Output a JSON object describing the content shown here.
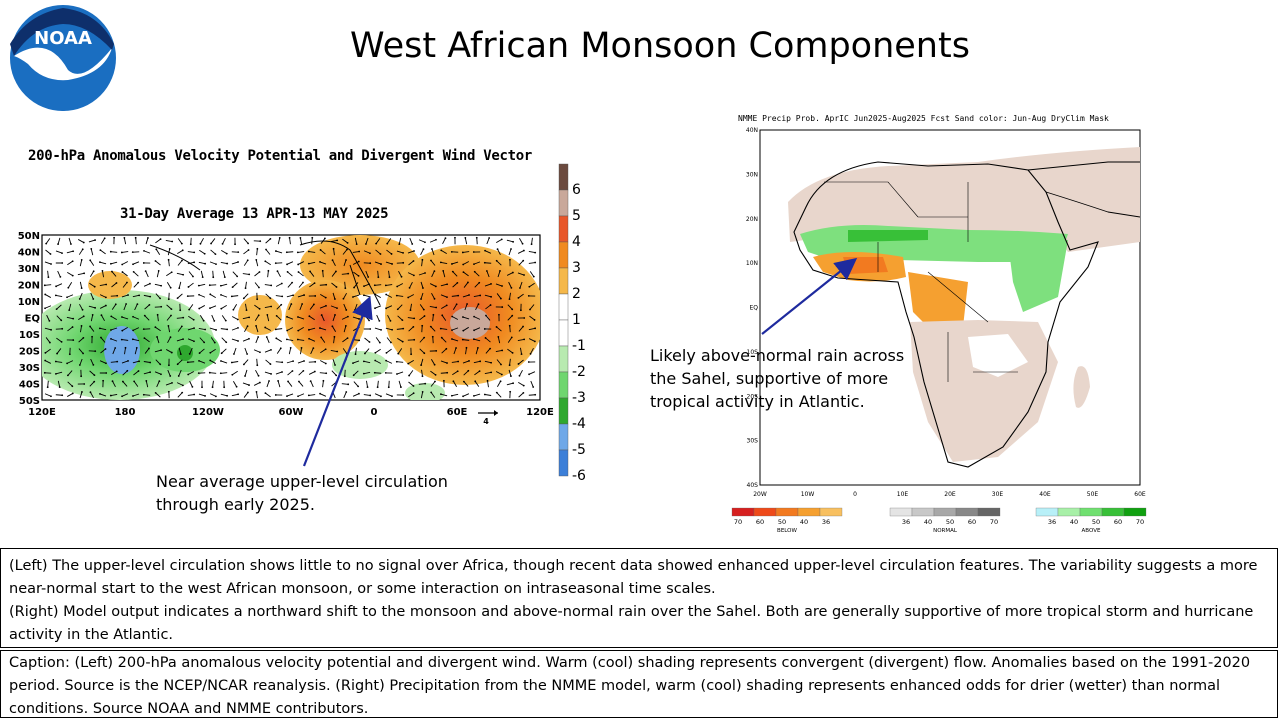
{
  "slide": {
    "title": "West African Monsoon Components",
    "logo_text": "NOAA"
  },
  "colors": {
    "noaa_blue": "#1a6ec1",
    "noaa_navy": "#0e2f6b",
    "arrow": "#1e2a9e",
    "land_dry": "#e8d6cc",
    "wet_green": "#7ee07e",
    "dry_orange": "#f0a030"
  },
  "chart_data": [
    {
      "type": "heatmap",
      "title": "200-hPa Anomalous Velocity Potential and Divergent Wind Vector",
      "subtitle": "31-Day Average 13 APR-13 MAY 2025",
      "x_tick_labels": [
        "120E",
        "180",
        "120W",
        "60W",
        "0",
        "60E",
        "120E"
      ],
      "y_tick_labels": [
        "50N",
        "40N",
        "30N",
        "20N",
        "10N",
        "EQ",
        "10S",
        "20S",
        "30S",
        "40S",
        "50S"
      ],
      "ylim": [
        -50,
        50
      ],
      "vector_scale_label": "4",
      "colorbar": {
        "tick_labels": [
          "6",
          "5",
          "4",
          "3",
          "2",
          "1",
          "-1",
          "-2",
          "-3",
          "-4",
          "-5",
          "-6"
        ],
        "colors": [
          "#6b4a3e",
          "#c9a89a",
          "#e8572a",
          "#f08a20",
          "#f5b84a",
          "#ffffff",
          "#ffffff",
          "#b8eab0",
          "#6fd66f",
          "#2fa82f",
          "#6fa8e8",
          "#3c7fd8"
        ]
      }
    },
    {
      "type": "heatmap",
      "title": "NMME Precip Prob. AprIC  Jun2025-Aug2025 Fcst  Sand color: Jun-Aug DryClim Mask",
      "x_tick_labels": [
        "20W",
        "10W",
        "0",
        "10E",
        "20E",
        "30E",
        "40E",
        "50E",
        "60E"
      ],
      "y_tick_labels": [
        "40N",
        "30N",
        "20N",
        "10N",
        "EQ",
        "10S",
        "20S",
        "30S",
        "40S"
      ],
      "legend": [
        {
          "name": "BELOW",
          "ticks": [
            "70",
            "60",
            "50",
            "40",
            "36"
          ],
          "colors": [
            "#d62020",
            "#ee4a1a",
            "#f27a20",
            "#f5a030",
            "#f8c060"
          ]
        },
        {
          "name": "NORMAL",
          "ticks": [
            "36",
            "40",
            "50",
            "60",
            "70"
          ],
          "colors": [
            "#e4e4e4",
            "#c8c8c8",
            "#a8a8a8",
            "#888888",
            "#666666"
          ]
        },
        {
          "name": "ABOVE",
          "ticks": [
            "36",
            "40",
            "50",
            "60",
            "70"
          ],
          "colors": [
            "#b8f0f8",
            "#a8f0a8",
            "#70e070",
            "#38c038",
            "#10a010"
          ]
        }
      ]
    }
  ],
  "annotations": {
    "left": "Near average  upper-level circulation through early 2025.",
    "right": "Likely above-normal  rain across the Sahel, supportive  of more tropical activity in Atlantic."
  },
  "summary": {
    "left": "(Left) The upper-level circulation shows little to no signal over Africa, though recent data showed enhanced upper-level circulation features. The variability suggests a more near-normal start to the west African monsoon, or some interaction on intraseasonal time scales.",
    "right": "(Right) Model output indicates a northward shift to the monsoon and above-normal rain over the Sahel. Both are generally supportive of more tropical storm and hurricane activity in the Atlantic."
  },
  "caption": "Caption: (Left) 200-hPa anomalous velocity potential and divergent wind. Warm (cool) shading represents convergent (divergent) flow. Anomalies based on the 1991-2020 period. Source is the NCEP/NCAR reanalysis. (Right) Precipitation from the NMME model, warm (cool) shading represents enhanced odds for drier (wetter) than normal conditions. Source NOAA and NMME contributors."
}
